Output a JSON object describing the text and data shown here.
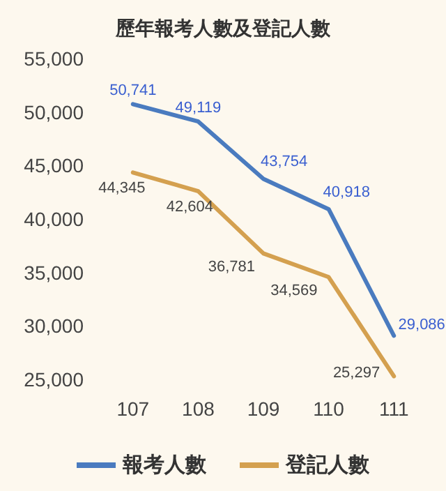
{
  "chart_data": {
    "type": "line",
    "title": "歷年報考人數及登記人數",
    "categories": [
      "107",
      "108",
      "109",
      "110",
      "111"
    ],
    "series": [
      {
        "name": "報考人數",
        "color": "#4a7bbf",
        "values": [
          50741,
          49119,
          43754,
          40918,
          29086
        ],
        "value_labels": [
          "50,741",
          "49,119",
          "43,754",
          "40,918",
          "29,086"
        ]
      },
      {
        "name": "登記人數",
        "color": "#d4a04f",
        "values": [
          44345,
          42604,
          36781,
          34569,
          25297
        ],
        "value_labels": [
          "44,345",
          "42,604",
          "36,781",
          "34,569",
          "25,297"
        ]
      }
    ],
    "ylim": [
      25000,
      55000
    ],
    "yticks": [
      {
        "value": 25000,
        "label": "25,000"
      },
      {
        "value": 30000,
        "label": "30,000"
      },
      {
        "value": 35000,
        "label": "35,000"
      },
      {
        "value": 40000,
        "label": "40,000"
      },
      {
        "value": 45000,
        "label": "45,000"
      },
      {
        "value": 50000,
        "label": "50,000"
      },
      {
        "value": 55000,
        "label": "55,000"
      }
    ],
    "grid": false,
    "legend": "bottom",
    "marker": "none",
    "line_style": "solid"
  }
}
